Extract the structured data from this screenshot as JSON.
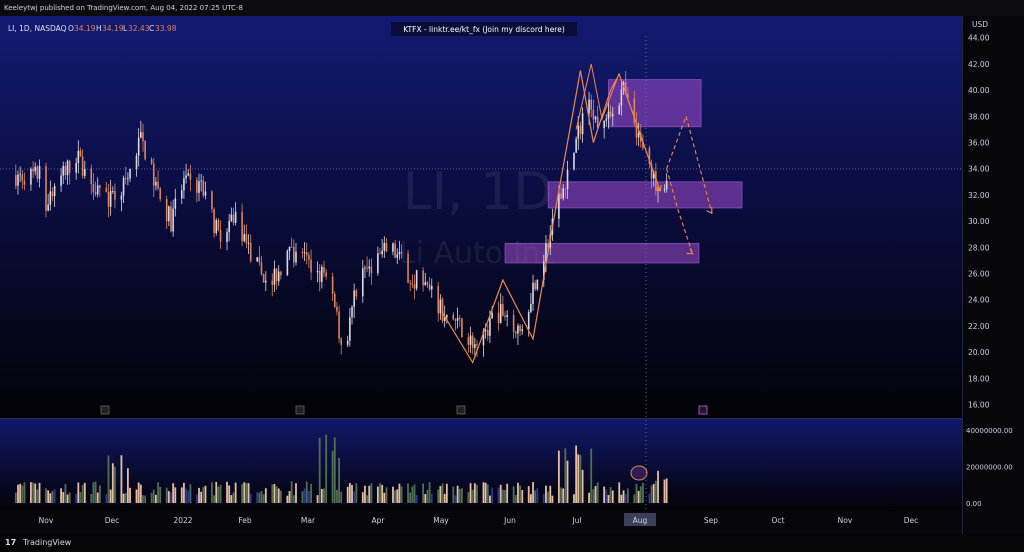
{
  "header": {
    "published_text": "Keeleytwj published on TradingView.com, Aug 04, 2022 07:25 UTC-8"
  },
  "footer": {
    "logo_text": "17",
    "brand": "TradingView"
  },
  "chart_data": {
    "type": "candlestick",
    "symbol_line": "LI, 1D, NASDAQ",
    "ohlc_readout": {
      "o_label": "O",
      "o_value": "34.19",
      "h_label": "H",
      "h_value": "34.19",
      "l_label": "L",
      "l_value": "32.43",
      "c_label": "C",
      "c_value": "33.98"
    },
    "banner": "KTFX - linktr.ee/kt_fx (Join my discord here)",
    "watermark_symbol": "LI, 1D",
    "watermark_name": "Li Auto Inc",
    "price_axis": {
      "currency": "USD",
      "ticks": [
        "44.00",
        "42.00",
        "40.00",
        "38.00",
        "36.00",
        "34.00",
        "32.00",
        "30.00",
        "28.00",
        "26.00",
        "24.00",
        "22.00",
        "20.00",
        "18.00",
        "16.00"
      ],
      "range": [
        15.5,
        45.2
      ]
    },
    "volume_axis": {
      "ticks": [
        "40000000.00",
        "20000000.00",
        "0.00"
      ],
      "range": [
        0,
        45000000
      ]
    },
    "x_axis": {
      "labels": [
        "Nov",
        "Dec",
        "2022",
        "Feb",
        "Mar",
        "Apr",
        "May",
        "Jun",
        "Jul",
        "Aug",
        "Sep",
        "Oct",
        "Nov",
        "Dec"
      ],
      "highlighted": "Aug"
    },
    "current_price": 33.98,
    "price_series_monthly": [
      {
        "month": "Nov",
        "range": [
          30.5,
          35.0
        ]
      },
      {
        "month": "Dec",
        "range": [
          28.5,
          37.5
        ]
      },
      {
        "month": "Jan",
        "range": [
          26.0,
          34.0
        ]
      },
      {
        "month": "Feb",
        "range": [
          22.0,
          31.5
        ]
      },
      {
        "month": "Mar",
        "range": [
          17.0,
          30.5
        ]
      },
      {
        "month": "Apr",
        "range": [
          22.0,
          29.0
        ]
      },
      {
        "month": "May",
        "range": [
          19.0,
          25.5
        ]
      },
      {
        "month": "Jun",
        "range": [
          21.0,
          37.0
        ]
      },
      {
        "month": "Jul",
        "range": [
          32.0,
          42.0
        ]
      },
      {
        "month": "Aug",
        "range": [
          32.4,
          36.0
        ]
      }
    ],
    "zones": [
      {
        "name": "supply-zone",
        "from": "Jul 20",
        "to": "Sep 1",
        "price_low": 37.2,
        "price_high": 40.8
      },
      {
        "name": "mid-zone",
        "from": "Jun 22",
        "to": "Sep 20",
        "price_low": 31.0,
        "price_high": 33.0
      },
      {
        "name": "lower-zone",
        "from": "Jun 2",
        "to": "Aug 31",
        "price_low": 26.8,
        "price_high": 28.3
      }
    ],
    "colors": {
      "up": "#d9dbe4",
      "down": "#e0845a",
      "volume_up": "#ffd2b0",
      "volume_down": "#5a7a5a",
      "zone": "#a24fd0",
      "pattern": "#f0884a"
    }
  }
}
